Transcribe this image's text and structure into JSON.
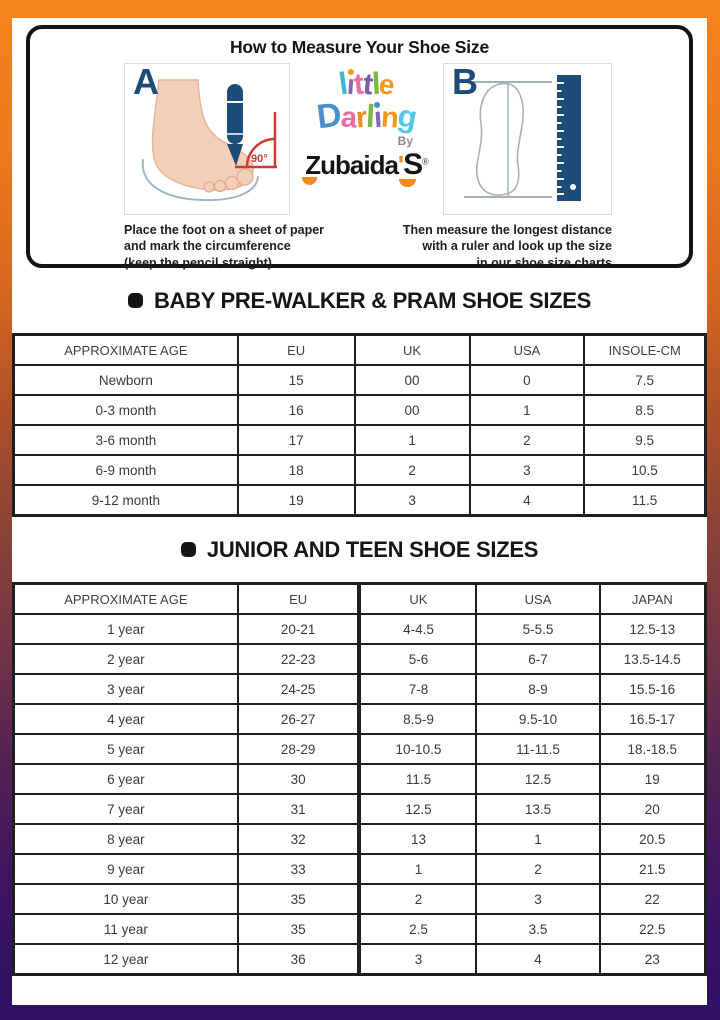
{
  "page": {
    "measure_title": "How to Measure Your Shoe Size",
    "label_a": "A",
    "label_b": "B",
    "angle_label": "90°",
    "caption_a": "Place the foot on a sheet of paper\nand mark the circumference\n(keep the pencil straight)",
    "caption_b": "Then measure the longest distance\nwith a ruler and look up the size\nin our shoe size charts"
  },
  "logo": {
    "word1": [
      {
        "ch": "l",
        "color": "#3eb4d8",
        "rot": -8,
        "size": 31
      },
      {
        "ch": "ı",
        "color": "#8b64ad",
        "rot": 4,
        "size": 28,
        "dot": "#f2991c"
      },
      {
        "ch": "t",
        "color": "#ef6a9f",
        "rot": -5,
        "size": 30
      },
      {
        "ch": "t",
        "color": "#7d5aa8",
        "rot": 6,
        "size": 30
      },
      {
        "ch": "l",
        "color": "#7cb942",
        "rot": -3,
        "size": 31
      },
      {
        "ch": "e",
        "color": "#f2991c",
        "rot": 8,
        "size": 28
      }
    ],
    "word2": [
      {
        "ch": "D",
        "color": "#4a90c8",
        "rot": -7,
        "size": 34
      },
      {
        "ch": "a",
        "color": "#ef6a9f",
        "rot": 5,
        "size": 29
      },
      {
        "ch": "r",
        "color": "#f28c1e",
        "rot": -5,
        "size": 29
      },
      {
        "ch": "l",
        "color": "#7cb942",
        "rot": 3,
        "size": 32
      },
      {
        "ch": "ı",
        "color": "#8b64ad",
        "rot": -4,
        "size": 29,
        "dot": "#4a90c8"
      },
      {
        "ch": "n",
        "color": "#f2991c",
        "rot": 4,
        "size": 29
      },
      {
        "ch": "g",
        "color": "#55c6e8",
        "rot": 10,
        "size": 31
      }
    ],
    "by_label": "By",
    "brand_name": "Zubaida",
    "apostrophe": "'",
    "brand_last": "S",
    "registered": "®"
  },
  "baby_sizes": {
    "heading": "BABY PRE-WALKER & PRAM SHOE SIZES",
    "columns": [
      "APPROXIMATE AGE",
      "EU",
      "UK",
      "USA",
      "INSOLE-CM"
    ],
    "rows": [
      [
        "Newborn",
        "15",
        "00",
        "0",
        "7.5"
      ],
      [
        "0-3 month",
        "16",
        "00",
        "1",
        "8.5"
      ],
      [
        "3-6 month",
        "17",
        "1",
        "2",
        "9.5"
      ],
      [
        "6-9 month",
        "18",
        "2",
        "3",
        "10.5"
      ],
      [
        "9-12 month",
        "19",
        "3",
        "4",
        "11.5"
      ]
    ]
  },
  "junior_sizes": {
    "heading": "JUNIOR AND TEEN SHOE SIZES",
    "columns": [
      "APPROXIMATE AGE",
      "EU",
      "UK",
      "USA",
      "JAPAN"
    ],
    "rows": [
      [
        "1 year",
        "20-21",
        "4-4.5",
        "5-5.5",
        "12.5-13"
      ],
      [
        "2 year",
        "22-23",
        "5-6",
        "6-7",
        "13.5-14.5"
      ],
      [
        "3 year",
        "24-25",
        "7-8",
        "8-9",
        "15.5-16"
      ],
      [
        "4 year",
        "26-27",
        "8.5-9",
        "9.5-10",
        "16.5-17"
      ],
      [
        "5 year",
        "28-29",
        "10-10.5",
        "11-11.5",
        "18.-18.5"
      ],
      [
        "6 year",
        "30",
        "11.5",
        "12.5",
        "19"
      ],
      [
        "7 year",
        "31",
        "12.5",
        "13.5",
        "20"
      ],
      [
        "8 year",
        "32",
        "13",
        "1",
        "20.5"
      ],
      [
        "9 year",
        "33",
        "1",
        "2",
        "21.5"
      ],
      [
        "10 year",
        "35",
        "2",
        "3",
        "22"
      ],
      [
        "11 year",
        "35",
        "2.5",
        "3.5",
        "22.5"
      ],
      [
        "12 year",
        "36",
        "3",
        "4",
        "23"
      ]
    ]
  },
  "colors": {
    "accent_orange": "#f28c1e",
    "dark_blue": "#1b4d78",
    "angle_red": "#cc3b33",
    "skin": "#f4cfb8"
  }
}
